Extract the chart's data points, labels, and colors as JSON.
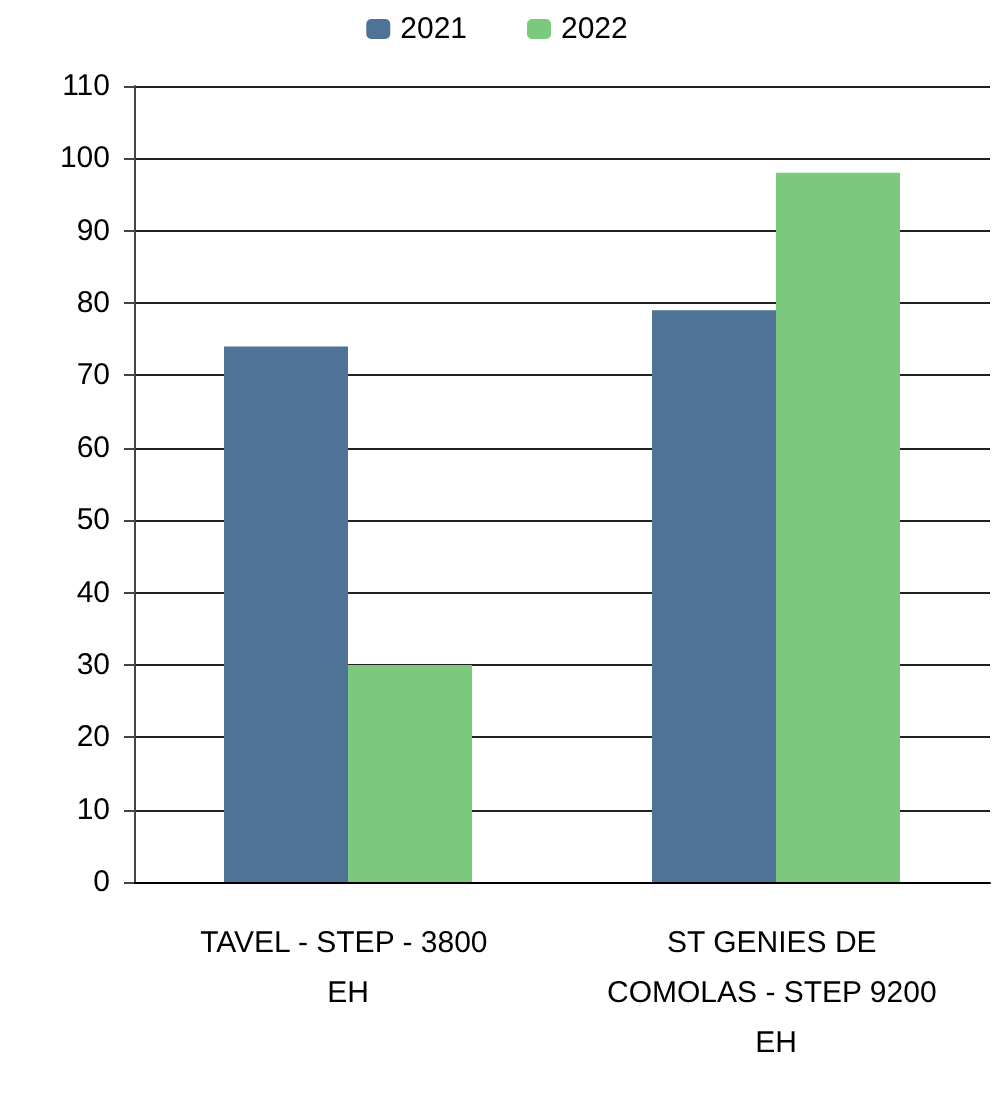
{
  "chart_data": {
    "type": "bar",
    "categories": [
      "TAVEL - STEP - 3800 EH",
      "ST GENIES DE COMOLAS - STEP 9200 EH"
    ],
    "series": [
      {
        "name": "2021",
        "color": "#4f7396",
        "values": [
          74,
          79
        ]
      },
      {
        "name": "2022",
        "color": "#7cc87c",
        "values": [
          30,
          98
        ]
      }
    ],
    "ylim": [
      0,
      110
    ],
    "yticks": [
      0,
      10,
      20,
      30,
      40,
      50,
      60,
      70,
      80,
      90,
      100,
      110
    ],
    "grid": "y",
    "legend": "top"
  }
}
